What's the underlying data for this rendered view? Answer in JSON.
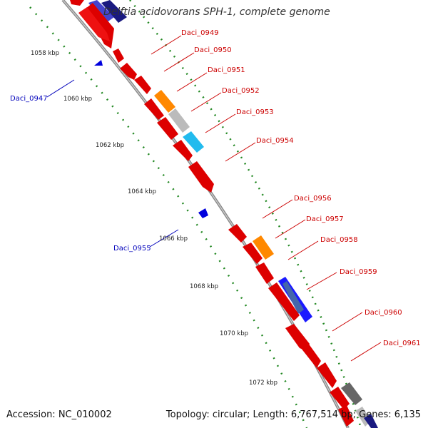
{
  "title": "Delftia acidovorans SPH-1, complete genome",
  "footer": {
    "accession": "Accession: NC_010002",
    "summary": "Topology: circular; Length: 6,767,514 bp; Genes: 6,135"
  },
  "colors": {
    "forward_label": "#cc0000",
    "reverse_label": "#0000bb",
    "backbone": "#9a9a9a",
    "tick": "#228822"
  },
  "ticks": [
    "1058 kbp",
    "1060 kbp",
    "1062 kbp",
    "1064 kbp",
    "1066 kbp",
    "1068 kbp",
    "1070 kbp",
    "1072 kbp"
  ],
  "gene_labels": {
    "forward": [
      "Daci_0949",
      "Daci_0950",
      "Daci_0951",
      "Daci_0952",
      "Daci_0953",
      "Daci_0954",
      "Daci_0956",
      "Daci_0957",
      "Daci_0958",
      "Daci_0959",
      "Daci_0960",
      "Daci_0961"
    ],
    "reverse": [
      "Daci_0947",
      "Daci_0955"
    ]
  }
}
